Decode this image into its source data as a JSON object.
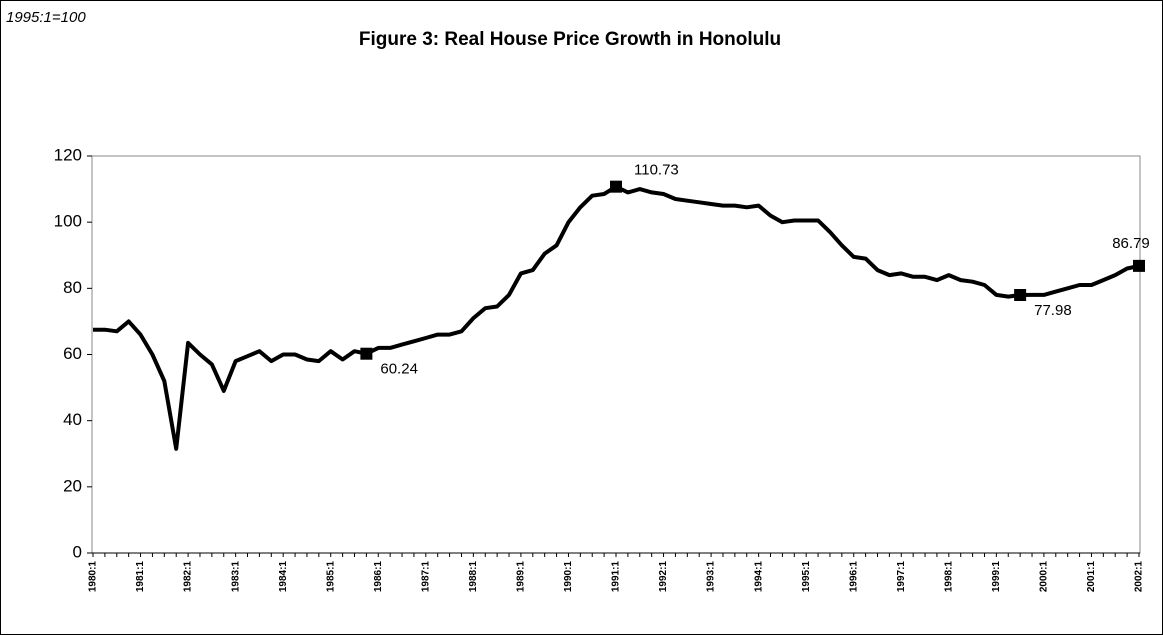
{
  "chart_data": {
    "type": "line",
    "title": "Figure 3: Real House Price Growth in Honolulu",
    "subtitle": "1995:1=100",
    "categories": [
      "1980:1",
      null,
      null,
      null,
      "1981:1",
      null,
      null,
      null,
      "1982:1",
      null,
      null,
      null,
      "1983:1",
      null,
      null,
      null,
      "1984:1",
      null,
      null,
      null,
      "1985:1",
      null,
      null,
      null,
      "1986:1",
      null,
      null,
      null,
      "1987:1",
      null,
      null,
      null,
      "1988:1",
      null,
      null,
      null,
      "1989:1",
      null,
      null,
      null,
      "1990:1",
      null,
      null,
      null,
      "1991:1",
      null,
      null,
      null,
      "1992:1",
      null,
      null,
      null,
      "1993:1",
      null,
      null,
      null,
      "1994:1",
      null,
      null,
      null,
      "1995:1",
      null,
      null,
      null,
      "1996:1",
      null,
      null,
      null,
      "1997:1",
      null,
      null,
      null,
      "1998:1",
      null,
      null,
      null,
      "1999:1",
      null,
      null,
      null,
      "2000:1",
      null,
      null,
      null,
      "2001:1",
      null,
      null,
      null,
      "2002:1"
    ],
    "values": [
      67.5,
      67.5,
      67,
      70,
      66,
      60,
      52,
      31.5,
      63.5,
      60,
      57,
      49,
      58,
      59.5,
      61,
      58,
      60,
      60,
      58.5,
      58,
      61,
      58.5,
      61,
      60.24,
      62,
      62,
      63,
      64,
      65,
      66,
      66,
      67,
      71,
      74,
      74.5,
      78,
      84.5,
      85.5,
      90.5,
      93,
      100,
      104.5,
      108,
      108.5,
      110.73,
      109,
      110,
      109,
      108.5,
      107,
      106.5,
      106,
      105.5,
      105,
      105,
      104.5,
      105,
      102,
      100,
      100.5,
      100.5,
      100.5,
      97,
      93,
      89.5,
      89,
      85.5,
      84,
      84.5,
      83.5,
      83.5,
      82.5,
      84,
      82.5,
      82,
      81,
      78,
      77.5,
      77.98,
      78,
      78,
      79,
      80,
      81,
      81,
      82.5,
      84,
      86,
      86.79
    ],
    "value_labels": [
      null,
      null,
      null,
      null,
      null,
      null,
      null,
      null,
      null,
      null,
      null,
      null,
      null,
      null,
      null,
      null,
      null,
      null,
      null,
      null,
      null,
      null,
      null,
      "60.24",
      null,
      null,
      null,
      null,
      null,
      null,
      null,
      null,
      null,
      null,
      null,
      null,
      null,
      null,
      null,
      null,
      null,
      null,
      null,
      null,
      "110.73",
      null,
      null,
      null,
      null,
      null,
      null,
      null,
      null,
      null,
      null,
      null,
      null,
      null,
      null,
      null,
      null,
      null,
      null,
      null,
      null,
      null,
      null,
      null,
      null,
      null,
      null,
      null,
      null,
      null,
      null,
      null,
      null,
      null,
      "77.98",
      null,
      null,
      null,
      null,
      null,
      null,
      null,
      null,
      null,
      "86.79"
    ],
    "color": "#000000",
    "ylim": [
      0,
      120
    ],
    "yticks": [
      0,
      20,
      40,
      60,
      80,
      100,
      120
    ],
    "grid": false
  }
}
